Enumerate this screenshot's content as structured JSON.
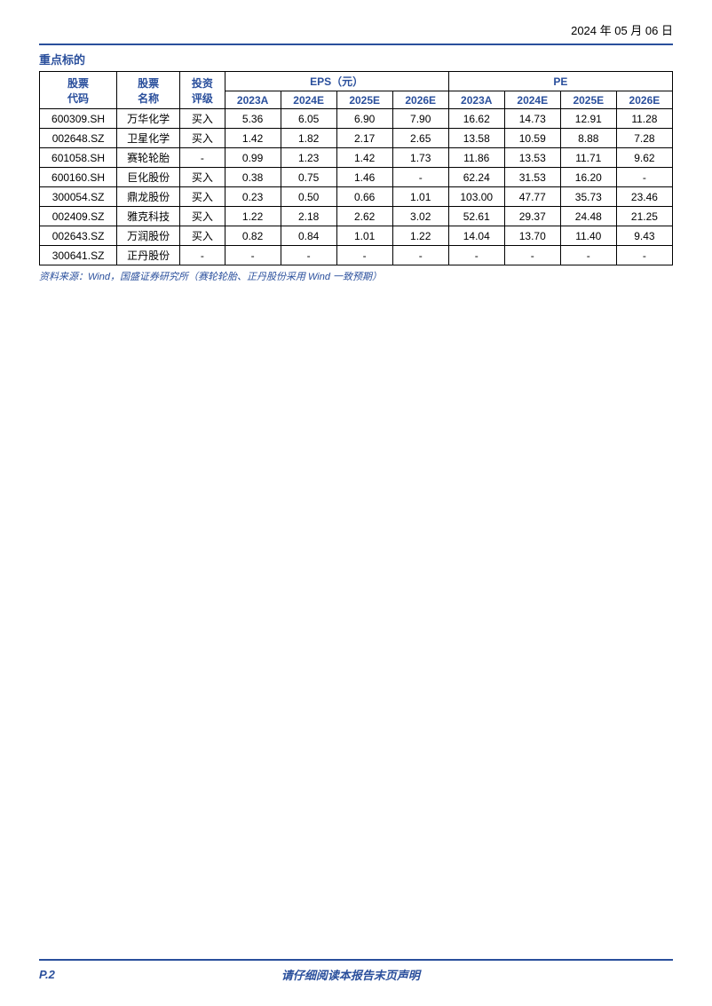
{
  "date": "2024 年 05 月 06 日",
  "section_title": "重点标的",
  "headers": {
    "code": "股票\n代码",
    "name": "股票\n名称",
    "rating": "投资\n评级",
    "eps": "EPS（元）",
    "pe": "PE",
    "years": [
      "2023A",
      "2024E",
      "2025E",
      "2026E"
    ]
  },
  "rows": [
    {
      "code": "600309.SH",
      "name": "万华化学",
      "rating": "买入",
      "eps": [
        "5.36",
        "6.05",
        "6.90",
        "7.90"
      ],
      "pe": [
        "16.62",
        "14.73",
        "12.91",
        "11.28"
      ]
    },
    {
      "code": "002648.SZ",
      "name": "卫星化学",
      "rating": "买入",
      "eps": [
        "1.42",
        "1.82",
        "2.17",
        "2.65"
      ],
      "pe": [
        "13.58",
        "10.59",
        "8.88",
        "7.28"
      ]
    },
    {
      "code": "601058.SH",
      "name": "赛轮轮胎",
      "rating": "-",
      "eps": [
        "0.99",
        "1.23",
        "1.42",
        "1.73"
      ],
      "pe": [
        "11.86",
        "13.53",
        "11.71",
        "9.62"
      ]
    },
    {
      "code": "600160.SH",
      "name": "巨化股份",
      "rating": "买入",
      "eps": [
        "0.38",
        "0.75",
        "1.46",
        "-"
      ],
      "pe": [
        "62.24",
        "31.53",
        "16.20",
        "-"
      ]
    },
    {
      "code": "300054.SZ",
      "name": "鼎龙股份",
      "rating": "买入",
      "eps": [
        "0.23",
        "0.50",
        "0.66",
        "1.01"
      ],
      "pe": [
        "103.00",
        "47.77",
        "35.73",
        "23.46"
      ]
    },
    {
      "code": "002409.SZ",
      "name": "雅克科技",
      "rating": "买入",
      "eps": [
        "1.22",
        "2.18",
        "2.62",
        "3.02"
      ],
      "pe": [
        "52.61",
        "29.37",
        "24.48",
        "21.25"
      ]
    },
    {
      "code": "002643.SZ",
      "name": "万润股份",
      "rating": "买入",
      "eps": [
        "0.82",
        "0.84",
        "1.01",
        "1.22"
      ],
      "pe": [
        "14.04",
        "13.70",
        "11.40",
        "9.43"
      ]
    },
    {
      "code": "300641.SZ",
      "name": "正丹股份",
      "rating": "-",
      "eps": [
        "-",
        "-",
        "-",
        "-"
      ],
      "pe": [
        "-",
        "-",
        "-",
        "-"
      ]
    }
  ],
  "source": "资料来源：Wind，国盛证券研究所（赛轮轮胎、正丹股份采用 Wind 一致预期）",
  "footer": {
    "page": "P.2",
    "disclaimer": "请仔细阅读本报告末页声明"
  },
  "colors": {
    "accent": "#2a4f9c",
    "border": "#000000",
    "bg": "#ffffff"
  }
}
